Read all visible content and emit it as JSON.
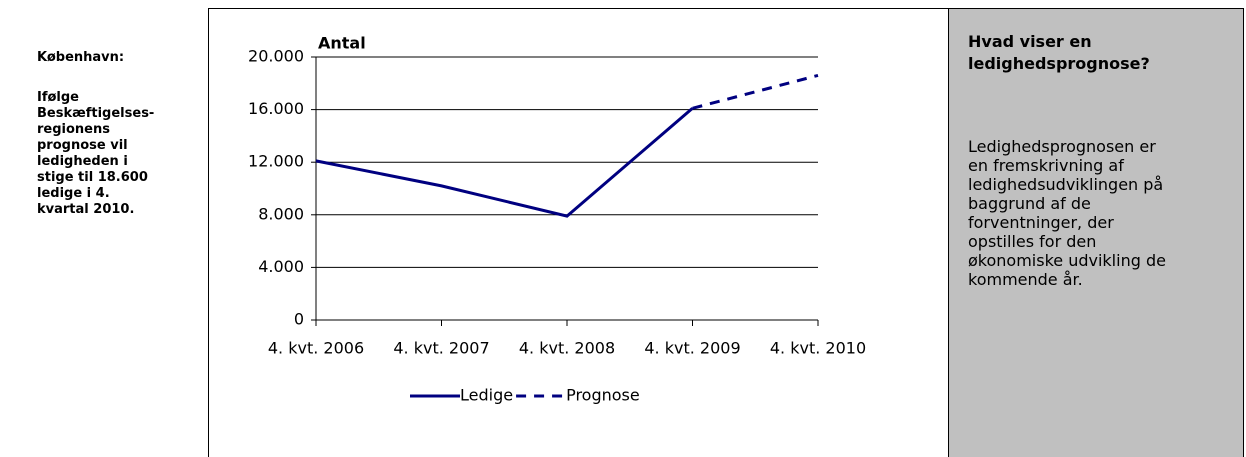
{
  "left": {
    "title": "København:",
    "lines": [
      "Ifølge",
      "Beskæftigelses-",
      "regionens",
      "prognose vil",
      "ledigheden i",
      "stige til 18.600",
      "ledige i 4.",
      "kvartal 2010."
    ]
  },
  "panel": {
    "title_lines": [
      "Hvad viser en",
      "ledighedsprognose?"
    ],
    "lines": [
      "Ledighedsprognosen er",
      "en fremskrivning af",
      "ledighedsudviklingen på",
      "baggrund af de",
      "forventninger, der",
      "opstilles for den",
      "økonomiske udvikling de",
      "kommende år."
    ]
  },
  "chart_data": {
    "type": "line",
    "y_label": "Antal",
    "categories": [
      "4. kvt. 2006",
      "4. kvt. 2007",
      "4. kvt. 2008",
      "4. kvt. 2009",
      "4. kvt. 2010"
    ],
    "series": [
      {
        "name": "Ledige",
        "color": "#000080",
        "dashed": false,
        "values": [
          12100,
          10200,
          7900,
          16100,
          null
        ]
      },
      {
        "name": "Prognose",
        "color": "#000080",
        "dashed": true,
        "values": [
          null,
          null,
          null,
          16100,
          18600
        ]
      }
    ],
    "ylim": [
      0,
      20000
    ],
    "yticks": [
      0,
      {
        "value": 4000,
        "label": "4.000"
      },
      {
        "value": 8000,
        "label": "8.000"
      },
      {
        "value": 12000,
        "label": "12.000"
      },
      {
        "value": 16000,
        "label": "16.000"
      },
      {
        "value": 20000,
        "label": "20.000"
      }
    ],
    "grid": true,
    "legend": "bottom"
  }
}
